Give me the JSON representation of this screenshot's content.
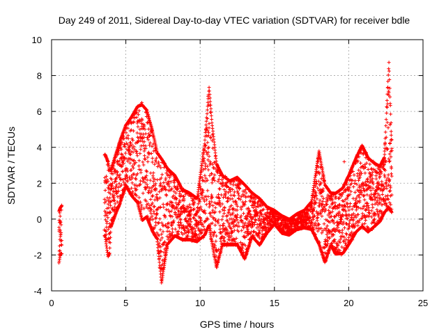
{
  "chart_data": {
    "type": "scatter",
    "title": "Day 249 of 2011, Sidereal Day-to-day VTEC variation (SDTVAR) for receiver bdle",
    "xlabel": "GPS time / hours",
    "ylabel": "SDTVAR / TECUs",
    "xlim": [
      0,
      25
    ],
    "ylim": [
      -4,
      10
    ],
    "xticks": [
      "0",
      "5",
      "10",
      "15",
      "20",
      "25"
    ],
    "yticks": [
      "-4",
      "-2",
      "0",
      "2",
      "4",
      "6",
      "8",
      "10"
    ],
    "grid": true,
    "marker": "plus",
    "color": "#ff0000",
    "envelope": {
      "x": [
        0.5,
        0.6,
        3.6,
        3.8,
        3.9,
        4.0,
        4.3,
        4.6,
        5.0,
        5.4,
        5.8,
        6.1,
        6.4,
        6.8,
        7.1,
        7.4,
        7.8,
        8.3,
        8.8,
        9.3,
        9.8,
        10.3,
        10.6,
        10.8,
        11.1,
        11.5,
        12.0,
        12.5,
        13.0,
        13.5,
        14.0,
        14.5,
        15.0,
        15.5,
        16.0,
        16.5,
        17.0,
        17.5,
        18.0,
        18.4,
        18.8,
        19.1,
        19.6,
        20.0,
        20.5,
        20.9,
        21.3,
        21.7,
        22.1,
        22.4,
        22.7,
        22.9
      ],
      "ymin": [
        -2.5,
        -2.0,
        -1.0,
        -2.2,
        -2.0,
        -0.5,
        0.2,
        0.8,
        1.8,
        1.2,
        0.8,
        -0.2,
        0.0,
        -0.8,
        -1.2,
        -3.7,
        -1.5,
        -1.0,
        -1.2,
        -1.2,
        -1.3,
        -1.0,
        -0.5,
        -1.5,
        -2.8,
        -1.5,
        -1.5,
        -1.5,
        -2.3,
        -1.0,
        -1.5,
        -0.8,
        -0.3,
        -0.8,
        -0.9,
        -0.6,
        -0.5,
        -0.6,
        -1.5,
        -2.5,
        -1.5,
        -2.0,
        -2.0,
        -1.5,
        -0.8,
        -0.5,
        -0.8,
        -0.5,
        -0.2,
        0.3,
        0.5,
        0.3
      ],
      "ymax": [
        0.5,
        0.7,
        3.7,
        3.3,
        2.8,
        2.8,
        3.6,
        4.4,
        5.3,
        5.8,
        6.4,
        6.5,
        6.2,
        5.0,
        3.8,
        3.5,
        2.9,
        2.5,
        1.7,
        1.5,
        1.2,
        4.3,
        7.5,
        5.5,
        3.2,
        2.5,
        2.2,
        2.4,
        2.0,
        1.5,
        1.2,
        0.7,
        0.5,
        0.2,
        0.0,
        0.3,
        0.5,
        1.0,
        3.9,
        2.0,
        1.5,
        1.5,
        1.8,
        2.5,
        3.5,
        4.2,
        3.5,
        3.2,
        3.0,
        3.5,
        8.9,
        4.0
      ]
    },
    "outliers": [
      {
        "x": 19.7,
        "y": 3.2
      }
    ]
  }
}
